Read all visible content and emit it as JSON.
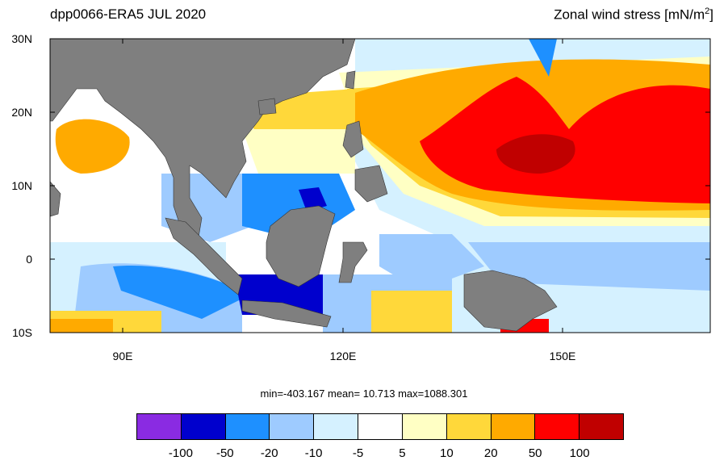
{
  "title_left": "dpp0066-ERA5  JUL 2020",
  "title_right_main": "Zonal wind stress [mN/m",
  "title_right_sup": "2",
  "title_right_end": "]",
  "y_labels": [
    "30N",
    "20N",
    "10N",
    "0",
    "10S"
  ],
  "x_labels": [
    "90E",
    "120E",
    "150E"
  ],
  "stats": "min=-403.167  mean=  10.713  max=1088.301",
  "colorbar": {
    "colors": [
      "#8a2be2",
      "#0000cd",
      "#1e90ff",
      "#9ecbff",
      "#d5f1ff",
      "#ffffff",
      "#ffffc4",
      "#ffd83a",
      "#ffaa00",
      "#ff0000",
      "#c00000"
    ],
    "labels": [
      "-100",
      "-50",
      "-20",
      "-10",
      "-5",
      "5",
      "10",
      "20",
      "50",
      "100"
    ]
  },
  "land_color": "#7f7f7f"
}
